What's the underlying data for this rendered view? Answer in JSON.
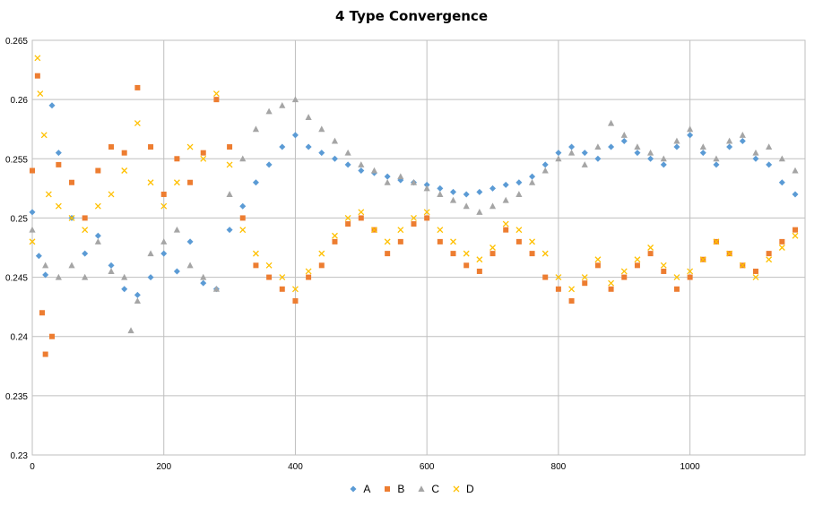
{
  "chart_data": {
    "type": "scatter",
    "title": "4 Type Convergence",
    "xlabel": "",
    "ylabel": "",
    "xlim": [
      0,
      1175
    ],
    "ylim": [
      0.23,
      0.265
    ],
    "xticks": [
      "0",
      "200",
      "400",
      "600",
      "800",
      "1000"
    ],
    "xtick_values": [
      0,
      200,
      400,
      600,
      800,
      1000
    ],
    "yticks": [
      "0.23",
      "0.235",
      "0.24",
      "0.245",
      "0.25",
      "0.255",
      "0.26",
      "0.265"
    ],
    "ytick_values": [
      0.23,
      0.235,
      0.24,
      0.245,
      0.25,
      0.255,
      0.26,
      0.265
    ],
    "grid": true,
    "legend_position": "bottom",
    "series": [
      {
        "name": "A",
        "marker": "diamond",
        "color": "#5B9BD5",
        "points": [
          [
            0,
            0.2505
          ],
          [
            10,
            0.2468
          ],
          [
            20,
            0.2452
          ],
          [
            30,
            0.2595
          ],
          [
            40,
            0.2555
          ],
          [
            60,
            0.25
          ],
          [
            80,
            0.247
          ],
          [
            100,
            0.2485
          ],
          [
            120,
            0.246
          ],
          [
            140,
            0.244
          ],
          [
            160,
            0.2435
          ],
          [
            180,
            0.245
          ],
          [
            200,
            0.247
          ],
          [
            220,
            0.2455
          ],
          [
            240,
            0.248
          ],
          [
            260,
            0.2445
          ],
          [
            280,
            0.244
          ],
          [
            300,
            0.249
          ],
          [
            320,
            0.251
          ],
          [
            340,
            0.253
          ],
          [
            360,
            0.2545
          ],
          [
            380,
            0.256
          ],
          [
            400,
            0.257
          ],
          [
            420,
            0.256
          ],
          [
            440,
            0.2555
          ],
          [
            460,
            0.255
          ],
          [
            480,
            0.2545
          ],
          [
            500,
            0.254
          ],
          [
            520,
            0.2538
          ],
          [
            540,
            0.2535
          ],
          [
            560,
            0.2532
          ],
          [
            580,
            0.253
          ],
          [
            600,
            0.2528
          ],
          [
            620,
            0.2525
          ],
          [
            640,
            0.2522
          ],
          [
            660,
            0.252
          ],
          [
            680,
            0.2522
          ],
          [
            700,
            0.2525
          ],
          [
            720,
            0.2528
          ],
          [
            740,
            0.253
          ],
          [
            760,
            0.2535
          ],
          [
            780,
            0.2545
          ],
          [
            800,
            0.2555
          ],
          [
            820,
            0.256
          ],
          [
            840,
            0.2555
          ],
          [
            860,
            0.255
          ],
          [
            880,
            0.256
          ],
          [
            900,
            0.2565
          ],
          [
            920,
            0.2555
          ],
          [
            940,
            0.255
          ],
          [
            960,
            0.2545
          ],
          [
            980,
            0.256
          ],
          [
            1000,
            0.257
          ],
          [
            1020,
            0.2555
          ],
          [
            1040,
            0.2545
          ],
          [
            1060,
            0.256
          ],
          [
            1080,
            0.2565
          ],
          [
            1100,
            0.255
          ],
          [
            1120,
            0.2545
          ],
          [
            1140,
            0.253
          ],
          [
            1160,
            0.252
          ]
        ]
      },
      {
        "name": "B",
        "marker": "square",
        "color": "#ED7D31",
        "points": [
          [
            0,
            0.254
          ],
          [
            8,
            0.262
          ],
          [
            15,
            0.242
          ],
          [
            20,
            0.2385
          ],
          [
            30,
            0.24
          ],
          [
            40,
            0.2545
          ],
          [
            60,
            0.253
          ],
          [
            80,
            0.25
          ],
          [
            100,
            0.254
          ],
          [
            120,
            0.256
          ],
          [
            140,
            0.2555
          ],
          [
            160,
            0.261
          ],
          [
            180,
            0.256
          ],
          [
            200,
            0.252
          ],
          [
            220,
            0.255
          ],
          [
            240,
            0.253
          ],
          [
            260,
            0.2555
          ],
          [
            280,
            0.26
          ],
          [
            300,
            0.256
          ],
          [
            320,
            0.25
          ],
          [
            340,
            0.246
          ],
          [
            360,
            0.245
          ],
          [
            380,
            0.244
          ],
          [
            400,
            0.243
          ],
          [
            420,
            0.245
          ],
          [
            440,
            0.246
          ],
          [
            460,
            0.248
          ],
          [
            480,
            0.2495
          ],
          [
            500,
            0.25
          ],
          [
            520,
            0.249
          ],
          [
            540,
            0.247
          ],
          [
            560,
            0.248
          ],
          [
            580,
            0.2495
          ],
          [
            600,
            0.25
          ],
          [
            620,
            0.248
          ],
          [
            640,
            0.247
          ],
          [
            660,
            0.246
          ],
          [
            680,
            0.2455
          ],
          [
            700,
            0.247
          ],
          [
            720,
            0.249
          ],
          [
            740,
            0.248
          ],
          [
            760,
            0.247
          ],
          [
            780,
            0.245
          ],
          [
            800,
            0.244
          ],
          [
            820,
            0.243
          ],
          [
            840,
            0.2445
          ],
          [
            860,
            0.246
          ],
          [
            880,
            0.244
          ],
          [
            900,
            0.245
          ],
          [
            920,
            0.246
          ],
          [
            940,
            0.247
          ],
          [
            960,
            0.2455
          ],
          [
            980,
            0.244
          ],
          [
            1000,
            0.245
          ],
          [
            1020,
            0.2465
          ],
          [
            1040,
            0.248
          ],
          [
            1060,
            0.247
          ],
          [
            1080,
            0.246
          ],
          [
            1100,
            0.2455
          ],
          [
            1120,
            0.247
          ],
          [
            1140,
            0.248
          ],
          [
            1160,
            0.249
          ]
        ]
      },
      {
        "name": "C",
        "marker": "triangle",
        "color": "#A5A5A5",
        "points": [
          [
            0,
            0.249
          ],
          [
            20,
            0.246
          ],
          [
            40,
            0.245
          ],
          [
            60,
            0.246
          ],
          [
            80,
            0.245
          ],
          [
            100,
            0.248
          ],
          [
            120,
            0.2455
          ],
          [
            140,
            0.245
          ],
          [
            150,
            0.2405
          ],
          [
            160,
            0.243
          ],
          [
            180,
            0.247
          ],
          [
            200,
            0.248
          ],
          [
            220,
            0.249
          ],
          [
            240,
            0.246
          ],
          [
            260,
            0.245
          ],
          [
            280,
            0.244
          ],
          [
            300,
            0.252
          ],
          [
            320,
            0.255
          ],
          [
            340,
            0.2575
          ],
          [
            360,
            0.259
          ],
          [
            380,
            0.2595
          ],
          [
            400,
            0.26
          ],
          [
            420,
            0.2585
          ],
          [
            440,
            0.2575
          ],
          [
            460,
            0.2565
          ],
          [
            480,
            0.2555
          ],
          [
            500,
            0.2545
          ],
          [
            520,
            0.254
          ],
          [
            540,
            0.253
          ],
          [
            560,
            0.2535
          ],
          [
            580,
            0.253
          ],
          [
            600,
            0.2525
          ],
          [
            620,
            0.252
          ],
          [
            640,
            0.2515
          ],
          [
            660,
            0.251
          ],
          [
            680,
            0.2505
          ],
          [
            700,
            0.251
          ],
          [
            720,
            0.2515
          ],
          [
            740,
            0.252
          ],
          [
            760,
            0.253
          ],
          [
            780,
            0.254
          ],
          [
            800,
            0.255
          ],
          [
            820,
            0.2555
          ],
          [
            840,
            0.2545
          ],
          [
            860,
            0.256
          ],
          [
            880,
            0.258
          ],
          [
            900,
            0.257
          ],
          [
            920,
            0.256
          ],
          [
            940,
            0.2555
          ],
          [
            960,
            0.255
          ],
          [
            980,
            0.2565
          ],
          [
            1000,
            0.2575
          ],
          [
            1020,
            0.256
          ],
          [
            1040,
            0.255
          ],
          [
            1060,
            0.2565
          ],
          [
            1080,
            0.257
          ],
          [
            1100,
            0.2555
          ],
          [
            1120,
            0.256
          ],
          [
            1140,
            0.255
          ],
          [
            1160,
            0.254
          ]
        ]
      },
      {
        "name": "D",
        "marker": "x",
        "color": "#FFC000",
        "points": [
          [
            0,
            0.248
          ],
          [
            8,
            0.2635
          ],
          [
            12,
            0.2605
          ],
          [
            18,
            0.257
          ],
          [
            25,
            0.252
          ],
          [
            40,
            0.251
          ],
          [
            60,
            0.25
          ],
          [
            80,
            0.249
          ],
          [
            100,
            0.251
          ],
          [
            120,
            0.252
          ],
          [
            140,
            0.254
          ],
          [
            160,
            0.258
          ],
          [
            180,
            0.253
          ],
          [
            200,
            0.251
          ],
          [
            220,
            0.253
          ],
          [
            240,
            0.256
          ],
          [
            260,
            0.255
          ],
          [
            280,
            0.2605
          ],
          [
            300,
            0.2545
          ],
          [
            320,
            0.249
          ],
          [
            340,
            0.247
          ],
          [
            360,
            0.246
          ],
          [
            380,
            0.245
          ],
          [
            400,
            0.244
          ],
          [
            420,
            0.2455
          ],
          [
            440,
            0.247
          ],
          [
            460,
            0.2485
          ],
          [
            480,
            0.25
          ],
          [
            500,
            0.2505
          ],
          [
            520,
            0.249
          ],
          [
            540,
            0.248
          ],
          [
            560,
            0.249
          ],
          [
            580,
            0.25
          ],
          [
            600,
            0.2505
          ],
          [
            620,
            0.249
          ],
          [
            640,
            0.248
          ],
          [
            660,
            0.247
          ],
          [
            680,
            0.2465
          ],
          [
            700,
            0.2475
          ],
          [
            720,
            0.2495
          ],
          [
            740,
            0.249
          ],
          [
            760,
            0.248
          ],
          [
            780,
            0.247
          ],
          [
            800,
            0.245
          ],
          [
            820,
            0.244
          ],
          [
            840,
            0.245
          ],
          [
            860,
            0.2465
          ],
          [
            880,
            0.2445
          ],
          [
            900,
            0.2455
          ],
          [
            920,
            0.2465
          ],
          [
            940,
            0.2475
          ],
          [
            960,
            0.246
          ],
          [
            980,
            0.245
          ],
          [
            1000,
            0.2455
          ],
          [
            1020,
            0.2465
          ],
          [
            1040,
            0.248
          ],
          [
            1060,
            0.247
          ],
          [
            1080,
            0.246
          ],
          [
            1100,
            0.245
          ],
          [
            1120,
            0.2465
          ],
          [
            1140,
            0.2475
          ],
          [
            1160,
            0.2485
          ]
        ]
      }
    ]
  }
}
